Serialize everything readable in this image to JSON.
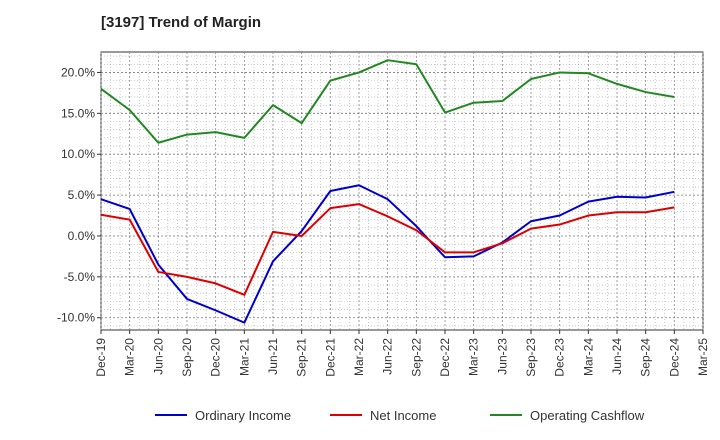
{
  "chart_data": {
    "type": "line",
    "title": "[3197]  Trend of Margin",
    "x": [
      "Dec-19",
      "Mar-20",
      "Jun-20",
      "Sep-20",
      "Dec-20",
      "Mar-21",
      "Jun-21",
      "Sep-21",
      "Dec-21",
      "Mar-22",
      "Jun-22",
      "Sep-22",
      "Dec-22",
      "Mar-23",
      "Jun-23",
      "Sep-23",
      "Dec-23",
      "Mar-24",
      "Jun-24",
      "Sep-24",
      "Dec-24",
      "Mar-25"
    ],
    "y_ticks": [
      "20.0%",
      "15.0%",
      "10.0%",
      "5.0%",
      "0.0%",
      "-5.0%",
      "-10.0%"
    ],
    "y_tick_values": [
      20,
      15,
      10,
      5,
      0,
      -5,
      -10
    ],
    "ylim": [
      -11.5,
      22.5
    ],
    "grid": true,
    "legend_position": "bottom",
    "series": [
      {
        "name": "Ordinary Income",
        "color": "#0000cc",
        "values": [
          4.5,
          3.3,
          -3.5,
          -7.7,
          -9.1,
          -10.6,
          -3.1,
          0.6,
          5.5,
          6.2,
          4.5,
          1.2,
          -2.6,
          -2.5,
          -0.8,
          1.8,
          2.5,
          4.2,
          4.8,
          4.7,
          5.4,
          null
        ]
      },
      {
        "name": "Net Income",
        "color": "#dd0000",
        "values": [
          2.6,
          2.0,
          -4.4,
          -5.0,
          -5.8,
          -7.2,
          0.5,
          0.0,
          3.4,
          3.9,
          2.4,
          0.7,
          -2.0,
          -2.0,
          -0.9,
          0.9,
          1.4,
          2.5,
          2.9,
          2.9,
          3.5,
          null
        ]
      },
      {
        "name": "Operating Cashflow",
        "color": "#228822",
        "values": [
          18.0,
          15.4,
          11.4,
          12.4,
          12.7,
          12.0,
          16.0,
          13.8,
          19.0,
          20.0,
          21.5,
          21.0,
          15.1,
          16.3,
          16.5,
          19.2,
          20.0,
          19.9,
          18.6,
          17.6,
          17.0,
          null
        ]
      }
    ]
  }
}
